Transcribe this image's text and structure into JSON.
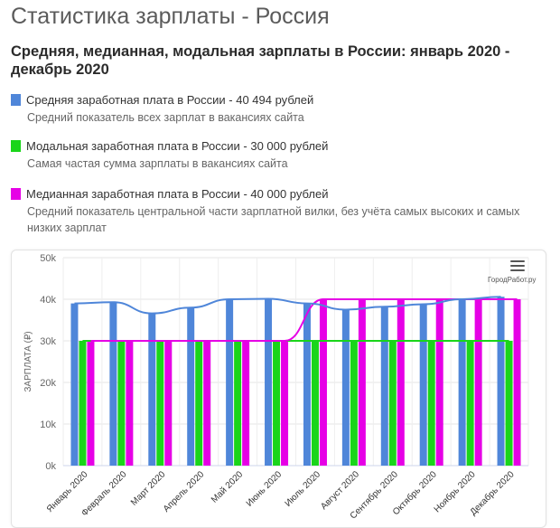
{
  "page": {
    "title": "Статистика зарплаты - Россия",
    "subtitle": "Средняя, медианная, модальная зарплаты в России: январь 2020 - декабрь 2020"
  },
  "legend": [
    {
      "label": "Средняя заработная плата в России - 40 494 рублей",
      "description": "Средний показатель всех зарплат в вакансиях сайта",
      "color": "#4f86d9"
    },
    {
      "label": "Модальная заработная плата в России - 30 000 рублей",
      "description": "Самая частая сумма зарплаты в вакансиях сайта",
      "color": "#1ad51a"
    },
    {
      "label": "Медианная заработная плата в России - 40 000 рублей",
      "description": "Средний показатель центральной части зарплатной вилки, без учёта самых высоких и самых низких зарплат",
      "color": "#e600e6"
    }
  ],
  "chart_menu_icon": "hamburger-menu-icon",
  "watermark": "ГородРабот.ру",
  "chart_data": {
    "type": "bar",
    "categories": [
      "Январь 2020",
      "Февраль 2020",
      "Март 2020",
      "Апрель 2020",
      "Май 2020",
      "Июнь 2020",
      "Июль 2020",
      "Август 2020",
      "Сентябрь 2020",
      "Октябрь 2020",
      "Ноябрь 2020",
      "Декабрь 2020"
    ],
    "ylabel": "ЗАРПЛАТА (₽)",
    "xlabel": "",
    "title": "",
    "ylim": [
      0,
      50000
    ],
    "yticks": [
      0,
      10000,
      20000,
      30000,
      40000,
      50000
    ],
    "ytick_labels": [
      "0k",
      "10k",
      "20k",
      "30k",
      "40k",
      "50k"
    ],
    "grid": true,
    "series": [
      {
        "key": "mean",
        "color": "#4f86d9",
        "values": [
          39000,
          39300,
          36600,
          38000,
          40000,
          40100,
          39000,
          37500,
          38200,
          38800,
          40000,
          40600
        ],
        "line": true
      },
      {
        "key": "mode",
        "color": "#1ad51a",
        "values": [
          30000,
          30000,
          30000,
          30000,
          30000,
          30000,
          30000,
          30000,
          30000,
          30000,
          30000,
          30000
        ],
        "line": true
      },
      {
        "key": "median",
        "color": "#e600e6",
        "values": [
          30000,
          30000,
          30000,
          30000,
          30000,
          30000,
          40000,
          40000,
          40000,
          40000,
          40000,
          40000
        ],
        "line": true
      }
    ]
  }
}
